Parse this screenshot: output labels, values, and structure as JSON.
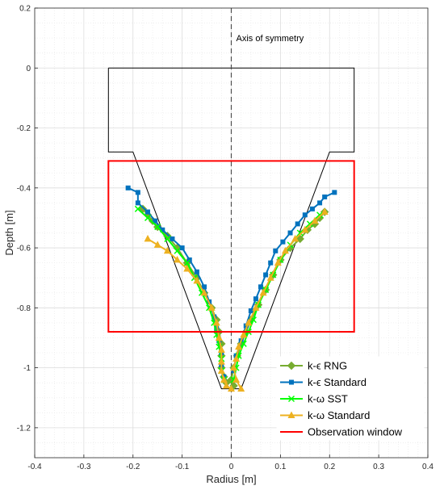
{
  "chart_data": {
    "type": "line",
    "xlabel": "Radius [m]",
    "ylabel": "Depth [m]",
    "xlim": [
      -0.4,
      0.4
    ],
    "ylim": [
      -1.3,
      0.2
    ],
    "x_ticks": [
      -0.4,
      -0.3,
      -0.2,
      -0.1,
      0,
      0.1,
      0.2,
      0.3,
      0.4
    ],
    "x_tick_labels": [
      "-0.4",
      "-0.3",
      "-0.2",
      "-0.1",
      "0",
      "0.1",
      "0.2",
      "0.3",
      "0.4"
    ],
    "y_ticks": [
      0.2,
      0,
      -0.2,
      -0.4,
      -0.6,
      -0.8,
      -1,
      -1.2
    ],
    "y_tick_labels": [
      "0.2",
      "0",
      "-0.2",
      "-0.4",
      "-0.6",
      "-0.8",
      "-1",
      "-1.2"
    ],
    "grid": "on",
    "legend_position": "bottom-right",
    "annotation": "Axis of symmetry",
    "axis_of_symmetry_x": 0,
    "colors": {
      "krng": "#77AC30",
      "kstd": "#0072BD",
      "wsst": "#00FF00",
      "wstd": "#EDB120",
      "window": "#FF0000",
      "outline": "#000000"
    },
    "geometry": {
      "name": "",
      "x": [
        -0.25,
        0.25,
        0.25,
        0.2,
        0.02,
        -0.02,
        -0.2,
        -0.25,
        -0.25
      ],
      "y": [
        0,
        0,
        -0.28,
        -0.28,
        -1.07,
        -1.07,
        -0.28,
        -0.28,
        0
      ]
    },
    "series": [
      {
        "name": "k-ϵ RNG",
        "key": "krng",
        "marker": "diamond",
        "left": {
          "x": [
            -0.18,
            -0.17,
            -0.16,
            -0.15,
            -0.13,
            -0.11,
            -0.09,
            -0.07,
            -0.055,
            -0.04,
            -0.03,
            -0.025,
            -0.02,
            -0.02,
            -0.02,
            -0.015,
            -0.01
          ],
          "y": [
            -0.47,
            -0.49,
            -0.51,
            -0.53,
            -0.56,
            -0.6,
            -0.65,
            -0.7,
            -0.75,
            -0.8,
            -0.84,
            -0.88,
            -0.92,
            -0.96,
            -1.0,
            -1.03,
            -1.05
          ]
        },
        "right": {
          "x": [
            0.19,
            0.18,
            0.17,
            0.155,
            0.14,
            0.12,
            0.1,
            0.085,
            0.07,
            0.055,
            0.04,
            0.03,
            0.02,
            0.012,
            0.005,
            0.0,
            0.005
          ],
          "y": [
            -0.48,
            -0.5,
            -0.52,
            -0.54,
            -0.57,
            -0.6,
            -0.64,
            -0.69,
            -0.74,
            -0.79,
            -0.84,
            -0.88,
            -0.92,
            -0.96,
            -1.0,
            -1.04,
            -1.06
          ]
        }
      },
      {
        "name": "k-ϵ Standard",
        "key": "kstd",
        "marker": "square",
        "left": {
          "x": [
            -0.21,
            -0.19,
            -0.19,
            -0.17,
            -0.155,
            -0.14,
            -0.12,
            -0.1,
            -0.085,
            -0.07,
            -0.055,
            -0.045,
            -0.035,
            -0.03,
            -0.025,
            -0.02,
            -0.02,
            -0.015
          ],
          "y": [
            -0.4,
            -0.415,
            -0.45,
            -0.48,
            -0.51,
            -0.54,
            -0.57,
            -0.6,
            -0.64,
            -0.68,
            -0.73,
            -0.78,
            -0.83,
            -0.87,
            -0.91,
            -0.95,
            -0.99,
            -1.03
          ]
        },
        "right": {
          "x": [
            0.21,
            0.19,
            0.18,
            0.165,
            0.15,
            0.135,
            0.12,
            0.105,
            0.09,
            0.08,
            0.07,
            0.06,
            0.05,
            0.04,
            0.03,
            0.02,
            0.01,
            0.005
          ],
          "y": [
            -0.415,
            -0.43,
            -0.45,
            -0.47,
            -0.49,
            -0.52,
            -0.55,
            -0.58,
            -0.61,
            -0.65,
            -0.69,
            -0.73,
            -0.77,
            -0.81,
            -0.86,
            -0.91,
            -0.96,
            -1.01
          ]
        }
      },
      {
        "name": "k-ω SST",
        "key": "wsst",
        "marker": "x",
        "left": {
          "x": [
            -0.19,
            -0.17,
            -0.15,
            -0.13,
            -0.11,
            -0.09,
            -0.075,
            -0.06,
            -0.045,
            -0.035,
            -0.03,
            -0.025,
            -0.02,
            -0.02,
            -0.015
          ],
          "y": [
            -0.47,
            -0.5,
            -0.53,
            -0.57,
            -0.61,
            -0.65,
            -0.7,
            -0.75,
            -0.8,
            -0.85,
            -0.89,
            -0.93,
            -0.97,
            -1.01,
            -1.04
          ]
        },
        "right": {
          "x": [
            0.18,
            0.16,
            0.14,
            0.12,
            0.1,
            0.085,
            0.07,
            0.055,
            0.045,
            0.035,
            0.025,
            0.015,
            0.01,
            0.005
          ],
          "y": [
            -0.49,
            -0.52,
            -0.55,
            -0.59,
            -0.64,
            -0.69,
            -0.74,
            -0.79,
            -0.84,
            -0.88,
            -0.92,
            -0.96,
            -1.0,
            -1.04
          ]
        }
      },
      {
        "name": "k-ω Standard",
        "key": "wstd",
        "marker": "triangle",
        "left": {
          "x": [
            -0.17,
            -0.15,
            -0.13,
            -0.11,
            -0.09,
            -0.07,
            -0.055,
            -0.04,
            -0.03,
            -0.025,
            -0.02,
            -0.02,
            -0.02,
            -0.015,
            -0.01,
            0.0
          ],
          "y": [
            -0.57,
            -0.59,
            -0.61,
            -0.64,
            -0.67,
            -0.71,
            -0.75,
            -0.8,
            -0.85,
            -0.9,
            -0.94,
            -0.98,
            -1.01,
            -1.04,
            -1.06,
            -1.07
          ]
        },
        "right": {
          "x": [
            0.19,
            0.17,
            0.15,
            0.13,
            0.11,
            0.095,
            0.08,
            0.065,
            0.05,
            0.035,
            0.025,
            0.015,
            0.01,
            0.005,
            0.01,
            0.02
          ],
          "y": [
            -0.48,
            -0.51,
            -0.54,
            -0.57,
            -0.61,
            -0.65,
            -0.7,
            -0.75,
            -0.8,
            -0.85,
            -0.89,
            -0.93,
            -0.97,
            -1.0,
            -1.04,
            -1.07
          ]
        }
      }
    ],
    "observation_window": {
      "name": "Observation window",
      "key": "window",
      "x": [
        -0.25,
        0.25
      ],
      "y": [
        -0.31,
        -0.88
      ]
    }
  }
}
